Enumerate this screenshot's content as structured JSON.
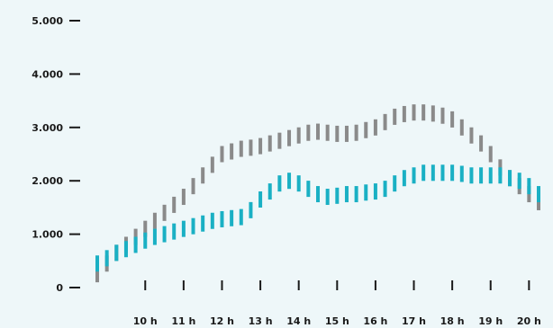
{
  "chart_data": {
    "type": "line",
    "title": "",
    "xlabel": "",
    "ylabel": "",
    "ylim": [
      0,
      5000
    ],
    "xlim": [
      8.75,
      20.25
    ],
    "yticks": [
      0,
      1000,
      2000,
      3000,
      4000,
      5000
    ],
    "ytick_labels": [
      "0",
      "1.000",
      "2.000",
      "3.000",
      "4.000",
      "5.000"
    ],
    "xticks": [
      10,
      11,
      12,
      13,
      14,
      15,
      16,
      17,
      18,
      19,
      20
    ],
    "xtick_labels": [
      "10 h",
      "11 h",
      "12 h",
      "13 h",
      "14 h",
      "15 h",
      "16 h",
      "17 h",
      "18 h",
      "19 h",
      "20 h"
    ],
    "grid": false,
    "legend": "none",
    "series": [
      {
        "color": "#8a8a8a",
        "x": [
          8.75,
          9,
          9.25,
          9.5,
          9.75,
          10,
          10.25,
          10.5,
          10.75,
          11,
          11.25,
          11.5,
          11.75,
          12,
          12.25,
          12.5,
          12.75,
          13,
          13.25,
          13.5,
          13.75,
          14,
          14.25,
          14.5,
          14.75,
          15,
          15.25,
          15.5,
          15.75,
          16,
          16.25,
          16.5,
          16.75,
          17,
          17.25,
          17.5,
          17.75,
          18,
          18.25,
          18.5,
          18.75,
          19,
          19.25,
          19.5,
          19.75,
          20,
          20.25
        ],
        "values": [
          250,
          450,
          650,
          800,
          950,
          1100,
          1250,
          1400,
          1550,
          1700,
          1900,
          2100,
          2300,
          2500,
          2550,
          2600,
          2620,
          2650,
          2700,
          2750,
          2800,
          2850,
          2900,
          2920,
          2900,
          2880,
          2880,
          2900,
          2950,
          3000,
          3100,
          3200,
          3250,
          3280,
          3280,
          3260,
          3220,
          3150,
          3000,
          2850,
          2700,
          2500,
          2250,
          2050,
          1900,
          1750,
          1600
        ]
      },
      {
        "color": "#1ab0c4",
        "x": [
          8.75,
          9,
          9.25,
          9.5,
          9.75,
          10,
          10.25,
          10.5,
          10.75,
          11,
          11.25,
          11.5,
          11.75,
          12,
          12.25,
          12.5,
          12.75,
          13,
          13.25,
          13.5,
          13.75,
          14,
          14.25,
          14.5,
          14.75,
          15,
          15.25,
          15.5,
          15.75,
          16,
          16.25,
          16.5,
          16.75,
          17,
          17.25,
          17.5,
          17.75,
          18,
          18.25,
          18.5,
          18.75,
          19,
          19.25,
          19.5,
          19.75,
          20,
          20.25
        ],
        "values": [
          450,
          550,
          650,
          720,
          800,
          880,
          950,
          1000,
          1050,
          1100,
          1150,
          1200,
          1250,
          1280,
          1300,
          1320,
          1450,
          1650,
          1800,
          1950,
          2000,
          1950,
          1850,
          1750,
          1700,
          1720,
          1750,
          1750,
          1780,
          1800,
          1850,
          1950,
          2050,
          2100,
          2150,
          2150,
          2150,
          2150,
          2130,
          2100,
          2100,
          2100,
          2100,
          2050,
          2000,
          1900,
          1750
        ]
      }
    ]
  }
}
